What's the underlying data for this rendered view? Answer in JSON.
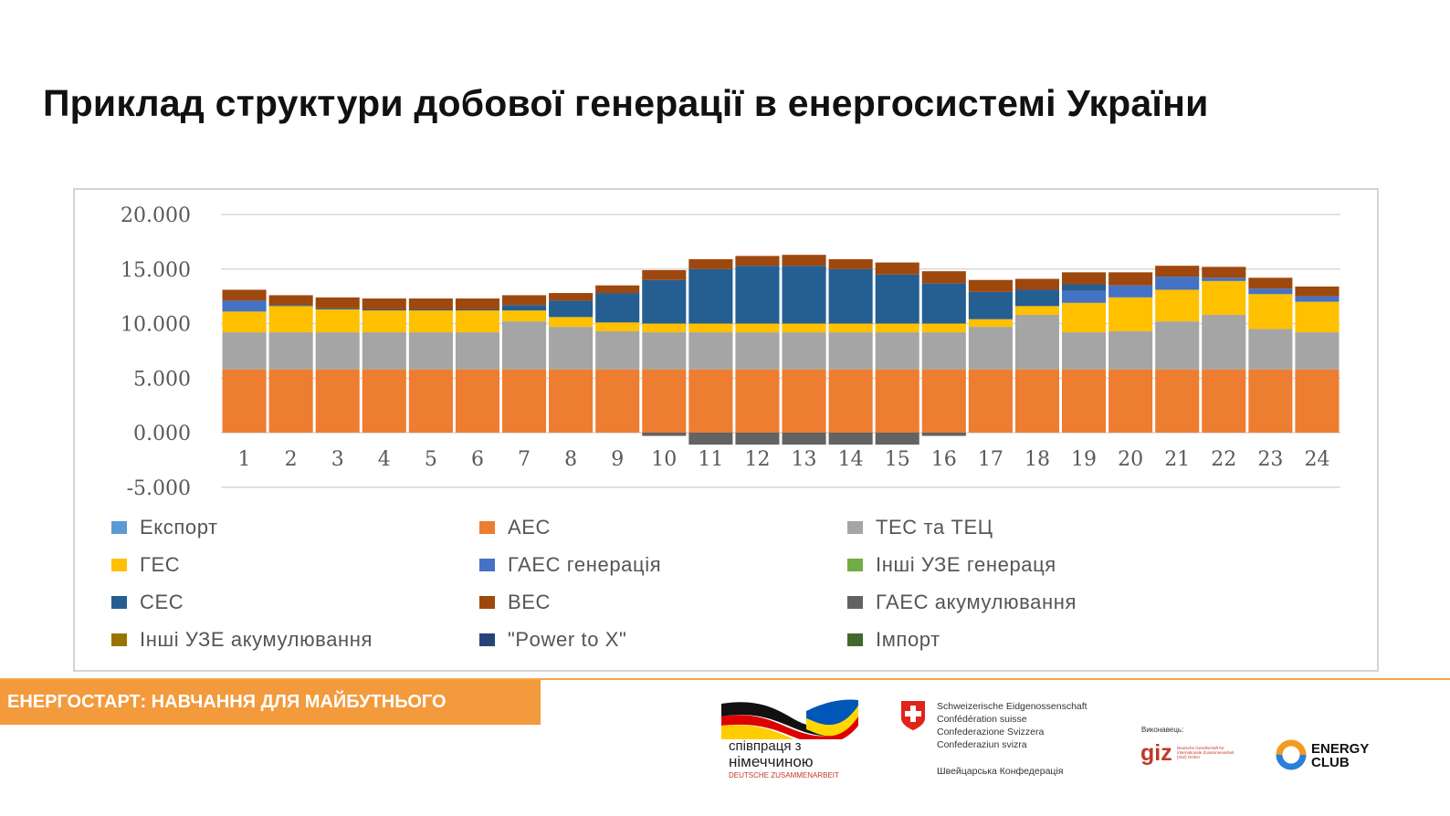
{
  "title": "Приклад структури добової генерації в енергосистемі України",
  "chart_data": {
    "type": "bar",
    "stacked": true,
    "title": "",
    "xlabel": "",
    "ylabel": "",
    "ylim": [
      -5000,
      20000
    ],
    "y_ticks": [
      20000,
      15000,
      10000,
      5000,
      0,
      -5000
    ],
    "y_tick_labels": [
      "20.000",
      "15.000",
      "10.000",
      "5.000",
      "0.000",
      "-5.000"
    ],
    "grid": true,
    "legend_position": "bottom",
    "categories": [
      "1",
      "2",
      "3",
      "4",
      "5",
      "6",
      "7",
      "8",
      "9",
      "10",
      "11",
      "12",
      "13",
      "14",
      "15",
      "16",
      "17",
      "18",
      "19",
      "20",
      "21",
      "22",
      "23",
      "24"
    ],
    "series": [
      {
        "name": "Експорт",
        "color": "#5b9bd5",
        "values": [
          0,
          0,
          0,
          0,
          0,
          0,
          0,
          0,
          0,
          0,
          0,
          0,
          0,
          0,
          0,
          0,
          0,
          0,
          0,
          0,
          0,
          0,
          0,
          0
        ]
      },
      {
        "name": "АЕС",
        "color": "#ed7d31",
        "values": [
          5800,
          5800,
          5800,
          5800,
          5800,
          5800,
          5800,
          5800,
          5800,
          5800,
          5800,
          5800,
          5800,
          5800,
          5800,
          5800,
          5800,
          5800,
          5800,
          5800,
          5800,
          5800,
          5800,
          5800
        ]
      },
      {
        "name": "ТЕС та ТЕЦ",
        "color": "#a5a5a5",
        "values": [
          3400,
          3400,
          3400,
          3400,
          3400,
          3400,
          4400,
          3900,
          3500,
          3400,
          3400,
          3400,
          3400,
          3400,
          3400,
          3400,
          3900,
          5000,
          3400,
          3500,
          4400,
          5000,
          3700,
          3400
        ]
      },
      {
        "name": "ГЕС",
        "color": "#ffc000",
        "values": [
          1900,
          2400,
          2100,
          2000,
          2000,
          2000,
          1000,
          900,
          800,
          800,
          800,
          800,
          800,
          800,
          800,
          800,
          700,
          800,
          2700,
          3100,
          2900,
          3100,
          3200,
          2800
        ]
      },
      {
        "name": "ГАЕС генерація",
        "color": "#4472c4",
        "values": [
          1000,
          0,
          0,
          0,
          0,
          0,
          0,
          0,
          0,
          0,
          0,
          0,
          0,
          0,
          0,
          0,
          0,
          0,
          1100,
          1100,
          1200,
          300,
          500,
          500
        ]
      },
      {
        "name": "Інші УЗЕ генераця",
        "color": "#70ad47",
        "values": [
          0,
          0,
          0,
          0,
          0,
          0,
          0,
          0,
          0,
          0,
          0,
          0,
          0,
          0,
          0,
          0,
          0,
          0,
          0,
          0,
          0,
          0,
          0,
          0
        ]
      },
      {
        "name": "СЕС",
        "color": "#255e91",
        "values": [
          0,
          100,
          100,
          100,
          100,
          100,
          500,
          1500,
          2700,
          4000,
          5000,
          5300,
          5300,
          5000,
          4500,
          3700,
          2500,
          1500,
          600,
          0,
          0,
          0,
          0,
          0
        ]
      },
      {
        "name": "ВЕС",
        "color": "#9e480e",
        "values": [
          1000,
          900,
          1000,
          1000,
          1000,
          1000,
          900,
          700,
          700,
          900,
          900,
          900,
          1000,
          900,
          1100,
          1100,
          1100,
          1000,
          1100,
          1200,
          1000,
          1000,
          1000,
          900
        ]
      },
      {
        "name": "ГАЕС акумулювання",
        "color": "#636363",
        "values": [
          0,
          0,
          0,
          0,
          0,
          0,
          0,
          0,
          0,
          -300,
          -1100,
          -1100,
          -1100,
          -1100,
          -1100,
          -300,
          0,
          0,
          0,
          0,
          0,
          0,
          0,
          0
        ]
      },
      {
        "name": " Інші УЗЕ акумулювання",
        "color": "#997300",
        "values": [
          0,
          0,
          0,
          0,
          0,
          0,
          0,
          0,
          0,
          0,
          0,
          0,
          0,
          0,
          0,
          0,
          0,
          0,
          0,
          0,
          0,
          0,
          0,
          0
        ]
      },
      {
        "name": "\"Power to X\"",
        "color": "#264478",
        "values": [
          0,
          0,
          0,
          0,
          0,
          0,
          0,
          0,
          0,
          0,
          0,
          0,
          0,
          0,
          0,
          0,
          0,
          0,
          0,
          0,
          0,
          0,
          0,
          0
        ]
      },
      {
        "name": "Імпорт",
        "color": "#43682b",
        "values": [
          0,
          0,
          0,
          0,
          0,
          0,
          0,
          0,
          0,
          0,
          0,
          0,
          0,
          0,
          0,
          0,
          0,
          0,
          0,
          0,
          0,
          0,
          0,
          0
        ]
      }
    ]
  },
  "footer": {
    "banner": "ЕНЕРГОСТАРТ: НАВЧАННЯ ДЛЯ МАЙБУТНЬОГО",
    "coop_line1": "співпраця з",
    "coop_line2": "німеччиною",
    "coop_line3": "DEUTSCHE ZUSAMMENARBEIT",
    "swiss_lines": [
      "Schweizerische Eidgenossenschaft",
      "Confédération suisse",
      "Confederazione Svizzera",
      "Confederaziun svizra"
    ],
    "swiss_ua": "Швейцарська Конфедерація",
    "giz_label": "Виконавець:",
    "giz_logo": "giz",
    "giz_small": "Deutsche Gesellschaft für Internationale Zusammenarbeit (GIZ) GmbH",
    "ec_line1": "ENERGY",
    "ec_line2": "CLUB"
  }
}
